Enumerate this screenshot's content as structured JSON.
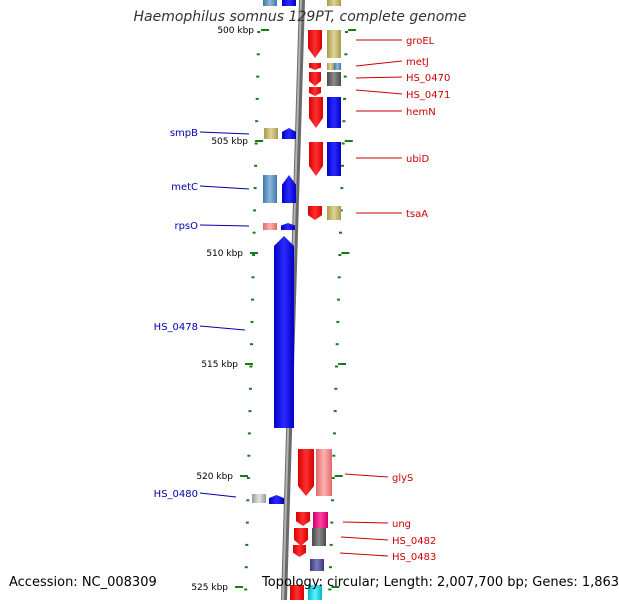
{
  "title": "Haemophilus somnus 129PT, complete genome",
  "footer": {
    "accession": "Accession: NC_008309",
    "summary": "Topology: circular; Length: 2,007,700 bp; Genes: 1,863"
  },
  "colors": {
    "backbone": "#8c8c8c",
    "tick": "#1a7a1a",
    "label_left": "#0000aa",
    "label_right": "#cc0000"
  },
  "scale_labels": [
    "500 kbp",
    "505 kbp",
    "510 kbp",
    "515 kbp",
    "520 kbp",
    "525 kbp"
  ],
  "left_genes": [
    "smpB",
    "metC",
    "rpsO",
    "HS_0478",
    "HS_0480"
  ],
  "right_genes": [
    "groEL",
    "metJ",
    "HS_0470",
    "HS_0471",
    "hemN",
    "ubiD",
    "tsaA",
    "glyS",
    "ung",
    "HS_0482",
    "HS_0483"
  ]
}
